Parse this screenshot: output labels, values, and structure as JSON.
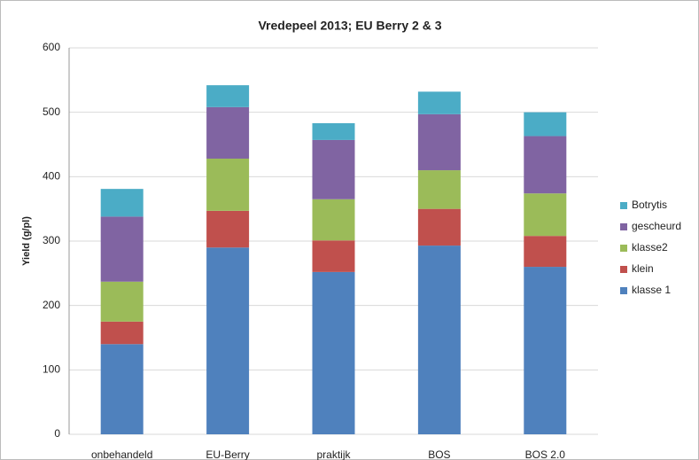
{
  "chart_data": {
    "type": "stacked_bar",
    "title": "Vredepeel 2013; EU Berry 2 & 3",
    "y_label": "Yield (g/pl)",
    "categories": [
      "onbehandeld",
      "EU-Berry",
      "praktijk",
      "BOS",
      "BOS 2.0"
    ],
    "series": [
      {
        "name": "klasse 1",
        "color": "#4f81bd",
        "values": [
          140,
          290,
          252,
          293,
          260
        ]
      },
      {
        "name": "klein",
        "color": "#c0504d",
        "values": [
          35,
          57,
          49,
          57,
          48
        ]
      },
      {
        "name": "klasse2",
        "color": "#9bbb59",
        "values": [
          62,
          81,
          64,
          60,
          66
        ]
      },
      {
        "name": "gescheurd",
        "color": "#8064a2",
        "values": [
          101,
          80,
          92,
          87,
          89
        ]
      },
      {
        "name": "Botrytis",
        "color": "#4bacc6",
        "values": [
          43,
          34,
          26,
          35,
          37
        ]
      }
    ],
    "ylim": [
      0,
      600
    ],
    "yticks": [
      0,
      100,
      200,
      300,
      400,
      500,
      600
    ],
    "grid": true,
    "legend": "right"
  }
}
